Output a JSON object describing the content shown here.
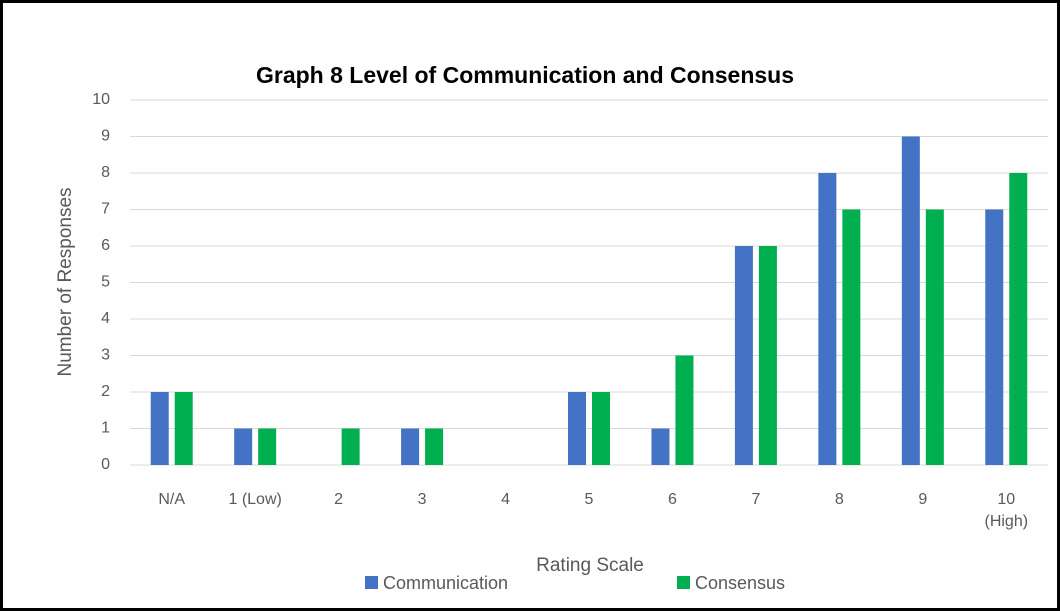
{
  "chart_data": {
    "type": "bar",
    "title": "Graph 8  Level of Communication and Consensus",
    "x_label": "Rating Scale",
    "y_label": "Number of Responses",
    "categories": [
      "N/A",
      "1 (Low)",
      "2",
      "3",
      "4",
      "5",
      "6",
      "7",
      "8",
      "9",
      "10 (High)"
    ],
    "series": [
      {
        "name": "Communication",
        "color": "#4472c4",
        "values": [
          2,
          1,
          0,
          1,
          0,
          2,
          1,
          6,
          8,
          9,
          7
        ]
      },
      {
        "name": "Consensus",
        "color": "#00b050",
        "values": [
          2,
          1,
          1,
          1,
          0,
          2,
          3,
          6,
          7,
          7,
          8
        ]
      }
    ],
    "ylim": [
      0,
      10
    ],
    "yticks": [
      0,
      1,
      2,
      3,
      4,
      5,
      6,
      7,
      8,
      9,
      10
    ],
    "grid": true,
    "legend": "bottom"
  }
}
